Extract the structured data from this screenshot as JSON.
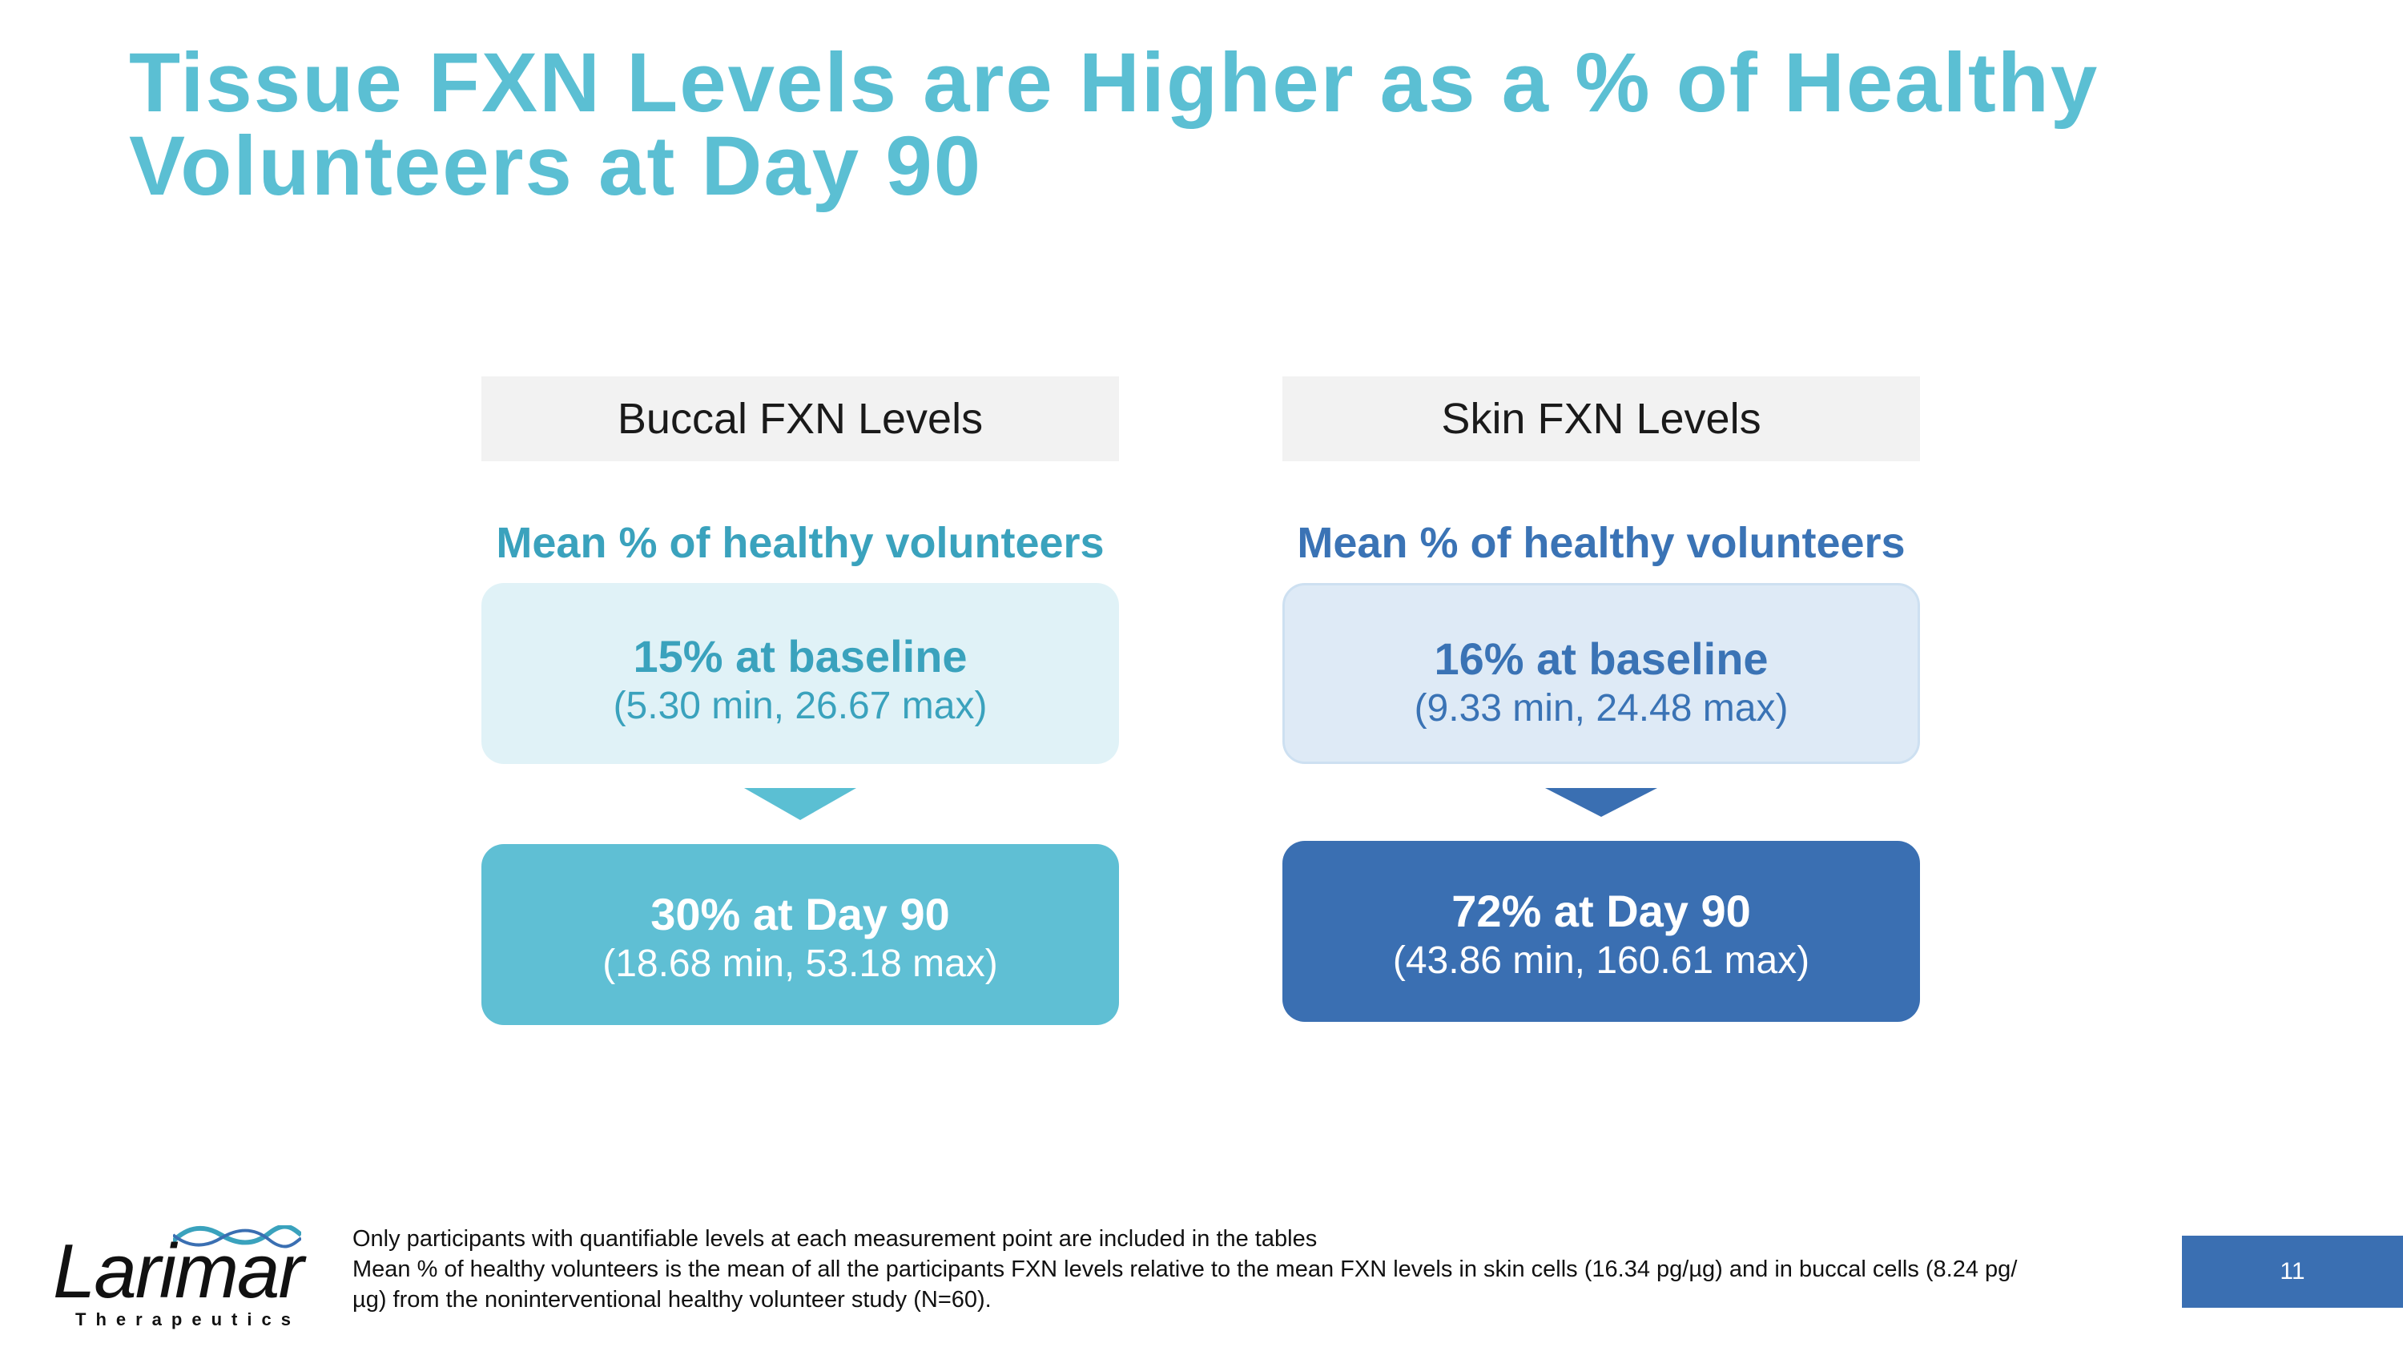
{
  "title": {
    "line1": "Tissue FXN Levels are Higher as a % of Healthy",
    "line2": "Volunteers at Day 90"
  },
  "panels": [
    {
      "header": "Buccal FXN Levels",
      "subtitle": "Mean % of healthy volunteers",
      "baseline": {
        "value": "15% at baseline",
        "range": "(5.30 min, 26.67 max)"
      },
      "day90": {
        "value": "30% at Day 90",
        "range": "(18.68 min, 53.18 max)"
      },
      "colors": {
        "accent": "#5bbfd3",
        "text": "#3aa2bd",
        "light": "#e0f2f7"
      }
    },
    {
      "header": "Skin FXN Levels",
      "subtitle": "Mean % of healthy volunteers",
      "baseline": {
        "value": "16% at baseline",
        "range": "(9.33 min, 24.48 max)"
      },
      "day90": {
        "value": "72% at Day 90",
        "range": "(43.86 min, 160.61 max)"
      },
      "colors": {
        "accent": "#3a6fb2",
        "text": "#3a73b5",
        "light": "#deeaf6"
      }
    }
  ],
  "logo": {
    "word": "Larimar",
    "sub": "Therapeutics"
  },
  "footnotes": {
    "line1": "Only participants with quantifiable levels at each measurement point are included in the tables",
    "line2": "Mean % of healthy volunteers is the mean of all the participants FXN levels relative to the mean FXN levels in skin cells (16.34 pg/µg) and in buccal cells (8.24 pg/µg)  from the noninterventional healthy volunteer study (N=60)."
  },
  "page_number": "11"
}
